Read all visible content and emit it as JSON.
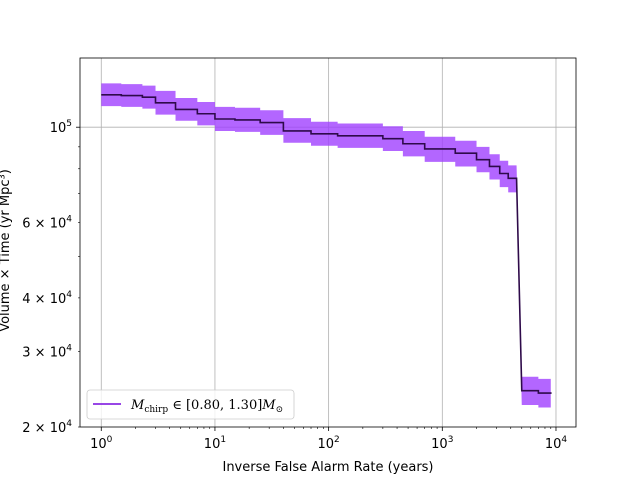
{
  "chart_data": {
    "type": "line",
    "xlabel": "Inverse False Alarm Rate (years)",
    "ylabel": "Volume × Time (yr Mpc³)",
    "xscale": "log",
    "yscale": "log",
    "xlim": [
      0.65,
      15000
    ],
    "ylim": [
      20000,
      145000
    ],
    "grid": true,
    "legend_position": "lower-left",
    "x_major_ticks": [
      1,
      10,
      100,
      1000,
      10000
    ],
    "x_tick_labels": [
      {
        "base": "10",
        "exp": "0"
      },
      {
        "base": "10",
        "exp": "1"
      },
      {
        "base": "10",
        "exp": "2"
      },
      {
        "base": "10",
        "exp": "3"
      },
      {
        "base": "10",
        "exp": "4"
      }
    ],
    "y_major_ticks": [
      100000
    ],
    "y_tick_labels": [
      {
        "value": 100000,
        "mant": "",
        "times": "",
        "base": "10",
        "exp": "5"
      },
      {
        "value": 60000,
        "mant": "6",
        "times": "×",
        "base": "10",
        "exp": "4"
      },
      {
        "value": 40000,
        "mant": "4",
        "times": "×",
        "base": "10",
        "exp": "4"
      },
      {
        "value": 30000,
        "mant": "3",
        "times": "×",
        "base": "10",
        "exp": "4"
      },
      {
        "value": 20000,
        "mant": "2",
        "times": "×",
        "base": "10",
        "exp": "4"
      }
    ],
    "series": [
      {
        "name": "M_chirp ∈ [0.80, 1.30] M_⊙",
        "legend": {
          "m": "M",
          "sub": "chirp",
          "range": "∈ [0.80, 1.30]",
          "m2": "M",
          "sub2": "⊙"
        },
        "line_color": "#2e0a4a",
        "band_color": "#a040ff",
        "legend_color": "#8a2be2",
        "x": [
          1.0,
          1.5,
          2.3,
          3.0,
          4.5,
          7.0,
          10,
          15,
          25,
          40,
          70,
          120,
          300,
          450,
          700,
          1300,
          2000,
          2600,
          3200,
          3800,
          4500,
          5000,
          7000,
          9000
        ],
        "y": [
          119000,
          118500,
          117500,
          114000,
          110000,
          107500,
          104500,
          104000,
          102500,
          98000,
          96500,
          95500,
          94000,
          91500,
          89000,
          87000,
          84000,
          81000,
          78000,
          76000,
          76000,
          24300,
          24000,
          23900
        ],
        "y_upper": [
          126500,
          126000,
          125000,
          121500,
          117000,
          114500,
          111500,
          111000,
          109500,
          105000,
          103000,
          102000,
          100500,
          98000,
          95000,
          93000,
          90000,
          86500,
          83500,
          81500,
          81500,
          26200,
          25900,
          25800
        ],
        "y_lower": [
          112000,
          111500,
          110500,
          107000,
          103500,
          101000,
          98000,
          97500,
          96000,
          92000,
          90500,
          89500,
          88000,
          85500,
          83000,
          81000,
          78500,
          75500,
          72500,
          70500,
          70500,
          22500,
          22200,
          22100
        ]
      }
    ]
  }
}
